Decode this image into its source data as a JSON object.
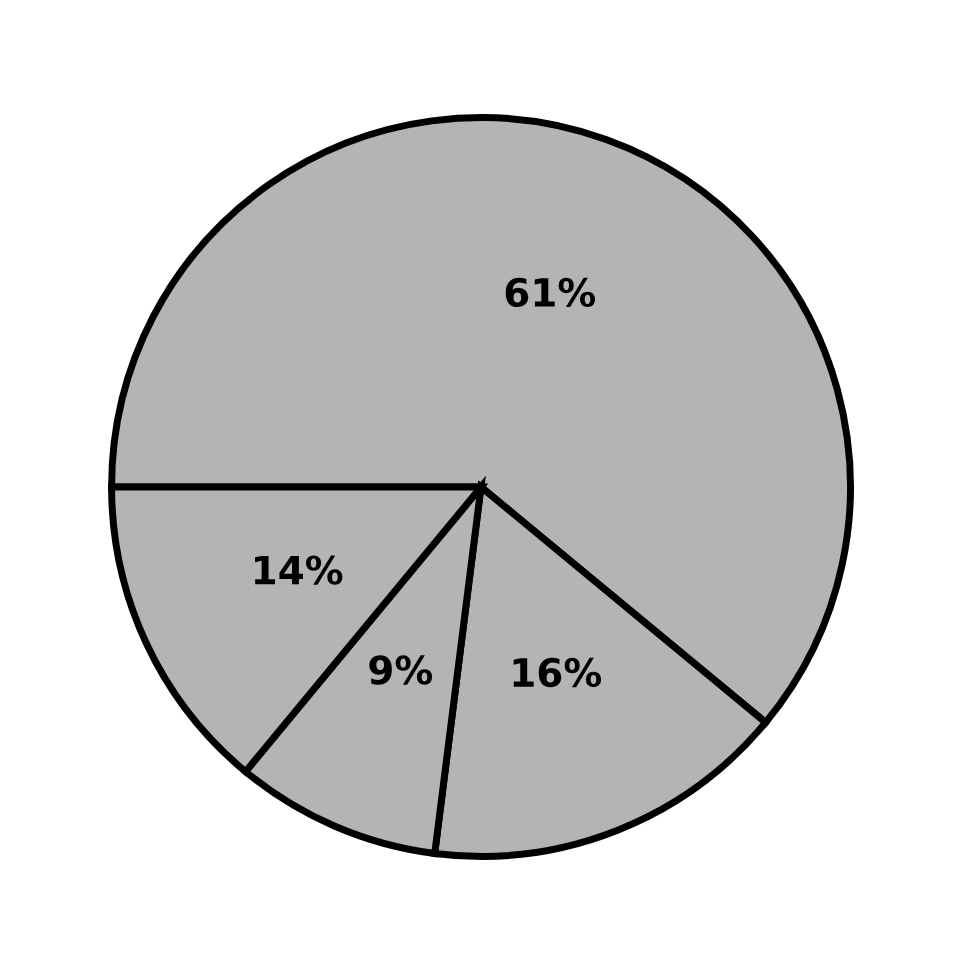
{
  "chart_data": {
    "type": "pie",
    "categories": [
      null,
      null,
      null,
      null
    ],
    "values": [
      61,
      16,
      9,
      14
    ],
    "value_labels": [
      "61%",
      "16%",
      "9%",
      "14%"
    ],
    "colors": [
      "#b4b4b4",
      "#b4b4b4",
      "#b4b4b4",
      "#b4b4b4"
    ]
  }
}
